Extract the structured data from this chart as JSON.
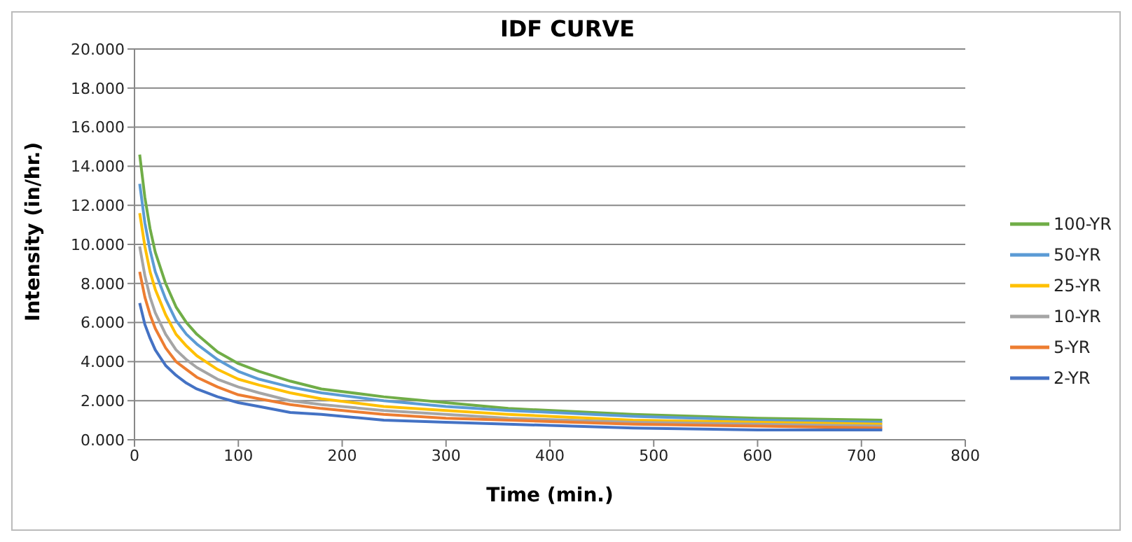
{
  "chart_data": {
    "type": "line",
    "title": "IDF CURVE",
    "xlabel": "Time (min.)",
    "ylabel": "Intensity (in/hr.)",
    "x": [
      5,
      10,
      15,
      20,
      30,
      40,
      50,
      60,
      80,
      100,
      120,
      150,
      180,
      240,
      300,
      360,
      480,
      600,
      720
    ],
    "xlim": [
      0,
      800
    ],
    "xticks": [
      0,
      100,
      200,
      300,
      400,
      500,
      600,
      700,
      800
    ],
    "ylim": [
      0,
      20
    ],
    "yticks": [
      {
        "value": 0,
        "label": "0.000"
      },
      {
        "value": 2,
        "label": "2.000"
      },
      {
        "value": 4,
        "label": "4.000"
      },
      {
        "value": 6,
        "label": "6.000"
      },
      {
        "value": 8,
        "label": "8.000"
      },
      {
        "value": 10,
        "label": "10.000"
      },
      {
        "value": 12,
        "label": "12.000"
      },
      {
        "value": 14,
        "label": "14.000"
      },
      {
        "value": 16,
        "label": "16.000"
      },
      {
        "value": 18,
        "label": "18.000"
      },
      {
        "value": 20,
        "label": "20.000"
      }
    ],
    "grid": "y",
    "legend": "right",
    "marker": "none",
    "line_style": "solid",
    "series": [
      {
        "name": "100-YR",
        "color": "#70ad47",
        "values": [
          14.6,
          12.4,
          10.8,
          9.6,
          8.0,
          6.8,
          6.0,
          5.4,
          4.5,
          3.9,
          3.5,
          3.0,
          2.6,
          2.2,
          1.9,
          1.6,
          1.3,
          1.1,
          1.0
        ]
      },
      {
        "name": "50-YR",
        "color": "#5b9bd5",
        "values": [
          13.1,
          11.1,
          9.7,
          8.6,
          7.2,
          6.1,
          5.4,
          4.9,
          4.1,
          3.5,
          3.1,
          2.7,
          2.4,
          2.0,
          1.7,
          1.5,
          1.2,
          1.0,
          0.9
        ]
      },
      {
        "name": "25-YR",
        "color": "#ffc000",
        "values": [
          11.6,
          9.9,
          8.6,
          7.7,
          6.4,
          5.4,
          4.8,
          4.3,
          3.6,
          3.1,
          2.8,
          2.4,
          2.1,
          1.7,
          1.5,
          1.3,
          1.0,
          0.9,
          0.8
        ]
      },
      {
        "name": "10-YR",
        "color": "#a5a5a5",
        "values": [
          9.9,
          8.4,
          7.3,
          6.5,
          5.4,
          4.6,
          4.1,
          3.7,
          3.1,
          2.7,
          2.4,
          2.0,
          1.8,
          1.5,
          1.3,
          1.1,
          0.9,
          0.8,
          0.7
        ]
      },
      {
        "name": "5-YR",
        "color": "#ed7d31",
        "values": [
          8.6,
          7.3,
          6.4,
          5.7,
          4.7,
          4.0,
          3.6,
          3.2,
          2.7,
          2.3,
          2.1,
          1.8,
          1.6,
          1.3,
          1.1,
          1.0,
          0.8,
          0.7,
          0.6
        ]
      },
      {
        "name": "2-YR",
        "color": "#4472c4",
        "values": [
          7.0,
          5.9,
          5.2,
          4.6,
          3.8,
          3.3,
          2.9,
          2.6,
          2.2,
          1.9,
          1.7,
          1.4,
          1.3,
          1.0,
          0.9,
          0.8,
          0.6,
          0.5,
          0.5
        ]
      }
    ]
  }
}
